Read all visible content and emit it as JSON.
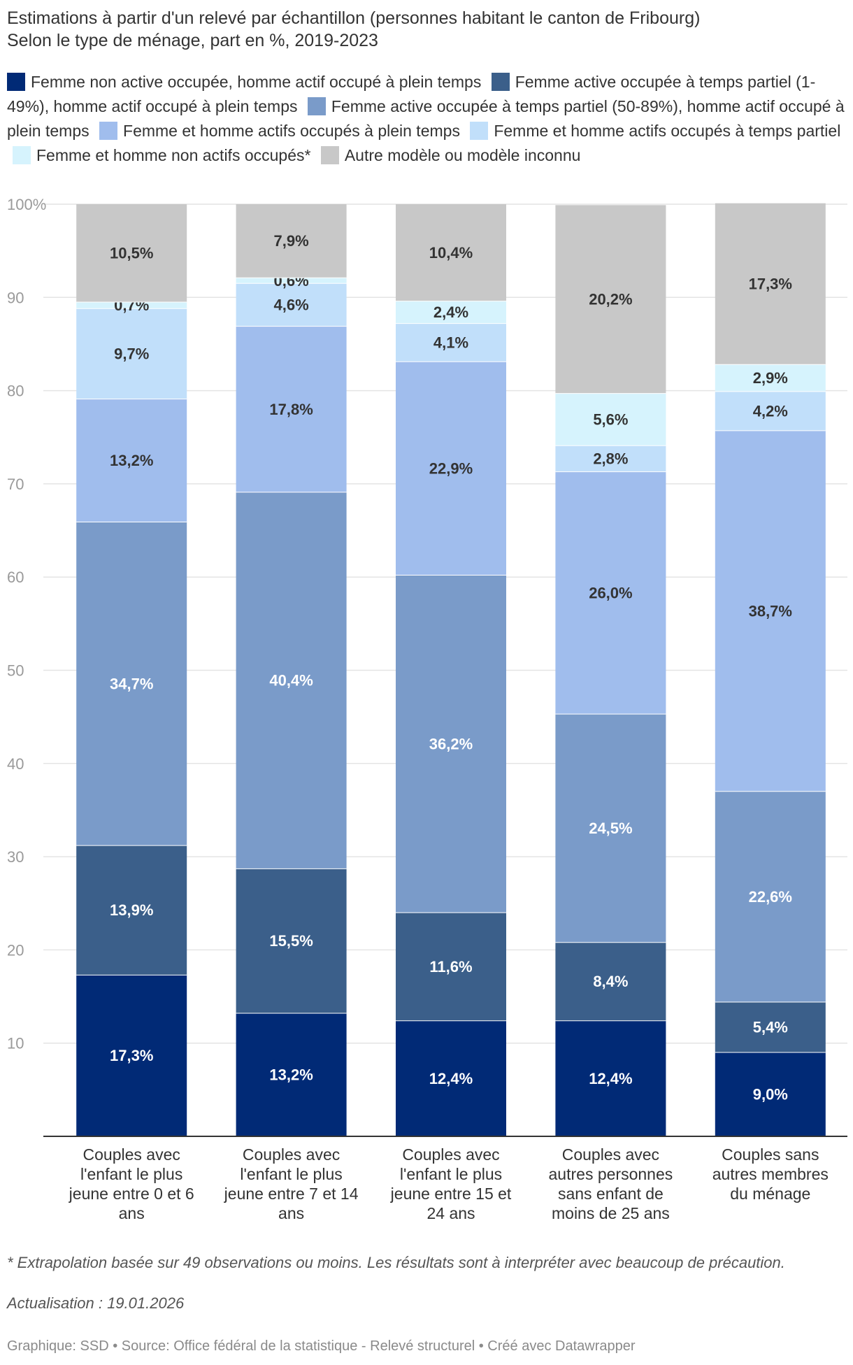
{
  "title": {
    "line1": "Estimations à partir d'un relevé par échantillon (personnes habitant le canton de Fribourg)",
    "line2": "Selon le type de ménage, part en %, 2019-2023"
  },
  "footnote": "* Extrapolation basée sur 49 observations ou moins. Les résultats sont à interpréter avec beaucoup de précaution.",
  "updated": "Actualisation : 19.01.2026",
  "credits": "Graphique: SSD • Source: Office fédéral de la statistique - Relevé structurel  • Créé avec Datawrapper",
  "chart_data": {
    "type": "bar",
    "stacked": true,
    "title": "Estimations à partir d'un relevé par échantillon (personnes habitant le canton de Fribourg)",
    "subtitle": "Selon le type de ménage, part en %, 2019-2023",
    "ylim": [
      0,
      100
    ],
    "yticks": [
      10,
      20,
      30,
      40,
      50,
      60,
      70,
      80,
      90,
      100
    ],
    "ytick_labels": [
      "10",
      "20",
      "30",
      "40",
      "50",
      "60",
      "70",
      "80",
      "90",
      "100%"
    ],
    "grid": true,
    "categories": [
      "Couples avec l'enfant le plus jeune entre 0 et 6 ans",
      "Couples avec l'enfant le plus jeune entre 7 et 14 ans",
      "Couples avec l'enfant le plus jeune entre 15 et 24 ans",
      "Couples avec autres personnes sans enfant de moins de 25 ans",
      "Couples sans autres membres du ménage"
    ],
    "category_lines": [
      [
        "Couples avec",
        "l'enfant le plus",
        "jeune entre 0 et 6",
        "ans"
      ],
      [
        "Couples avec",
        "l'enfant le plus",
        "jeune entre 7 et 14",
        "ans"
      ],
      [
        "Couples avec",
        "l'enfant le plus",
        "jeune entre 15 et",
        "24 ans"
      ],
      [
        "Couples avec",
        "autres personnes",
        "sans enfant de",
        "moins de 25 ans"
      ],
      [
        "Couples sans",
        "autres membres",
        "du ménage"
      ]
    ],
    "series": [
      {
        "name": "Femme non active occupée, homme actif occupé à plein temps",
        "color": "#012a76",
        "label_color": "#ffffff",
        "values": [
          17.3,
          13.2,
          12.4,
          12.4,
          9.0
        ],
        "labels": [
          "17,3%",
          "13,2%",
          "12,4%",
          "12,4%",
          "9,0%"
        ]
      },
      {
        "name": "Femme active occupée à temps partiel (1-49%), homme actif occupé à plein temps",
        "color": "#3b5f8a",
        "label_color": "#ffffff",
        "values": [
          13.9,
          15.5,
          11.6,
          8.4,
          5.4
        ],
        "labels": [
          "13,9%",
          "15,5%",
          "11,6%",
          "8,4%",
          "5,4%"
        ]
      },
      {
        "name": "Femme active occupée à temps partiel (50-89%), homme actif occupé à plein temps",
        "color": "#7a9bc9",
        "label_color": "#ffffff",
        "values": [
          34.7,
          40.4,
          36.2,
          24.5,
          22.6
        ],
        "labels": [
          "34,7%",
          "40,4%",
          "36,2%",
          "24,5%",
          "22,6%"
        ]
      },
      {
        "name": "Femme et homme actifs occupés à plein temps",
        "color": "#a0bded",
        "label_color": "#333333",
        "values": [
          13.2,
          17.8,
          22.9,
          26.0,
          38.7
        ],
        "labels": [
          "13,2%",
          "17,8%",
          "22,9%",
          "26,0%",
          "38,7%"
        ]
      },
      {
        "name": "Femme et homme actifs occupés à temps partiel",
        "color": "#c1dffa",
        "label_color": "#333333",
        "values": [
          9.7,
          4.6,
          4.1,
          2.8,
          4.2
        ],
        "labels": [
          "9,7%",
          "4,6%",
          "4,1%",
          "2,8%",
          "4,2%"
        ]
      },
      {
        "name": "Femme et homme non actifs occupés*",
        "color": "#d6f3fd",
        "label_color": "#333333",
        "values": [
          0.7,
          0.6,
          2.4,
          5.6,
          2.9
        ],
        "labels": [
          "0,7%",
          "0,6%",
          "2,4%",
          "5,6%",
          "2,9%"
        ]
      },
      {
        "name": "Autre modèle ou modèle inconnu",
        "color": "#c8c8c8",
        "label_color": "#333333",
        "values": [
          10.5,
          7.9,
          10.4,
          20.2,
          17.3
        ],
        "labels": [
          "10,5%",
          "7,9%",
          "10,4%",
          "20,2%",
          "17,3%"
        ]
      }
    ]
  }
}
